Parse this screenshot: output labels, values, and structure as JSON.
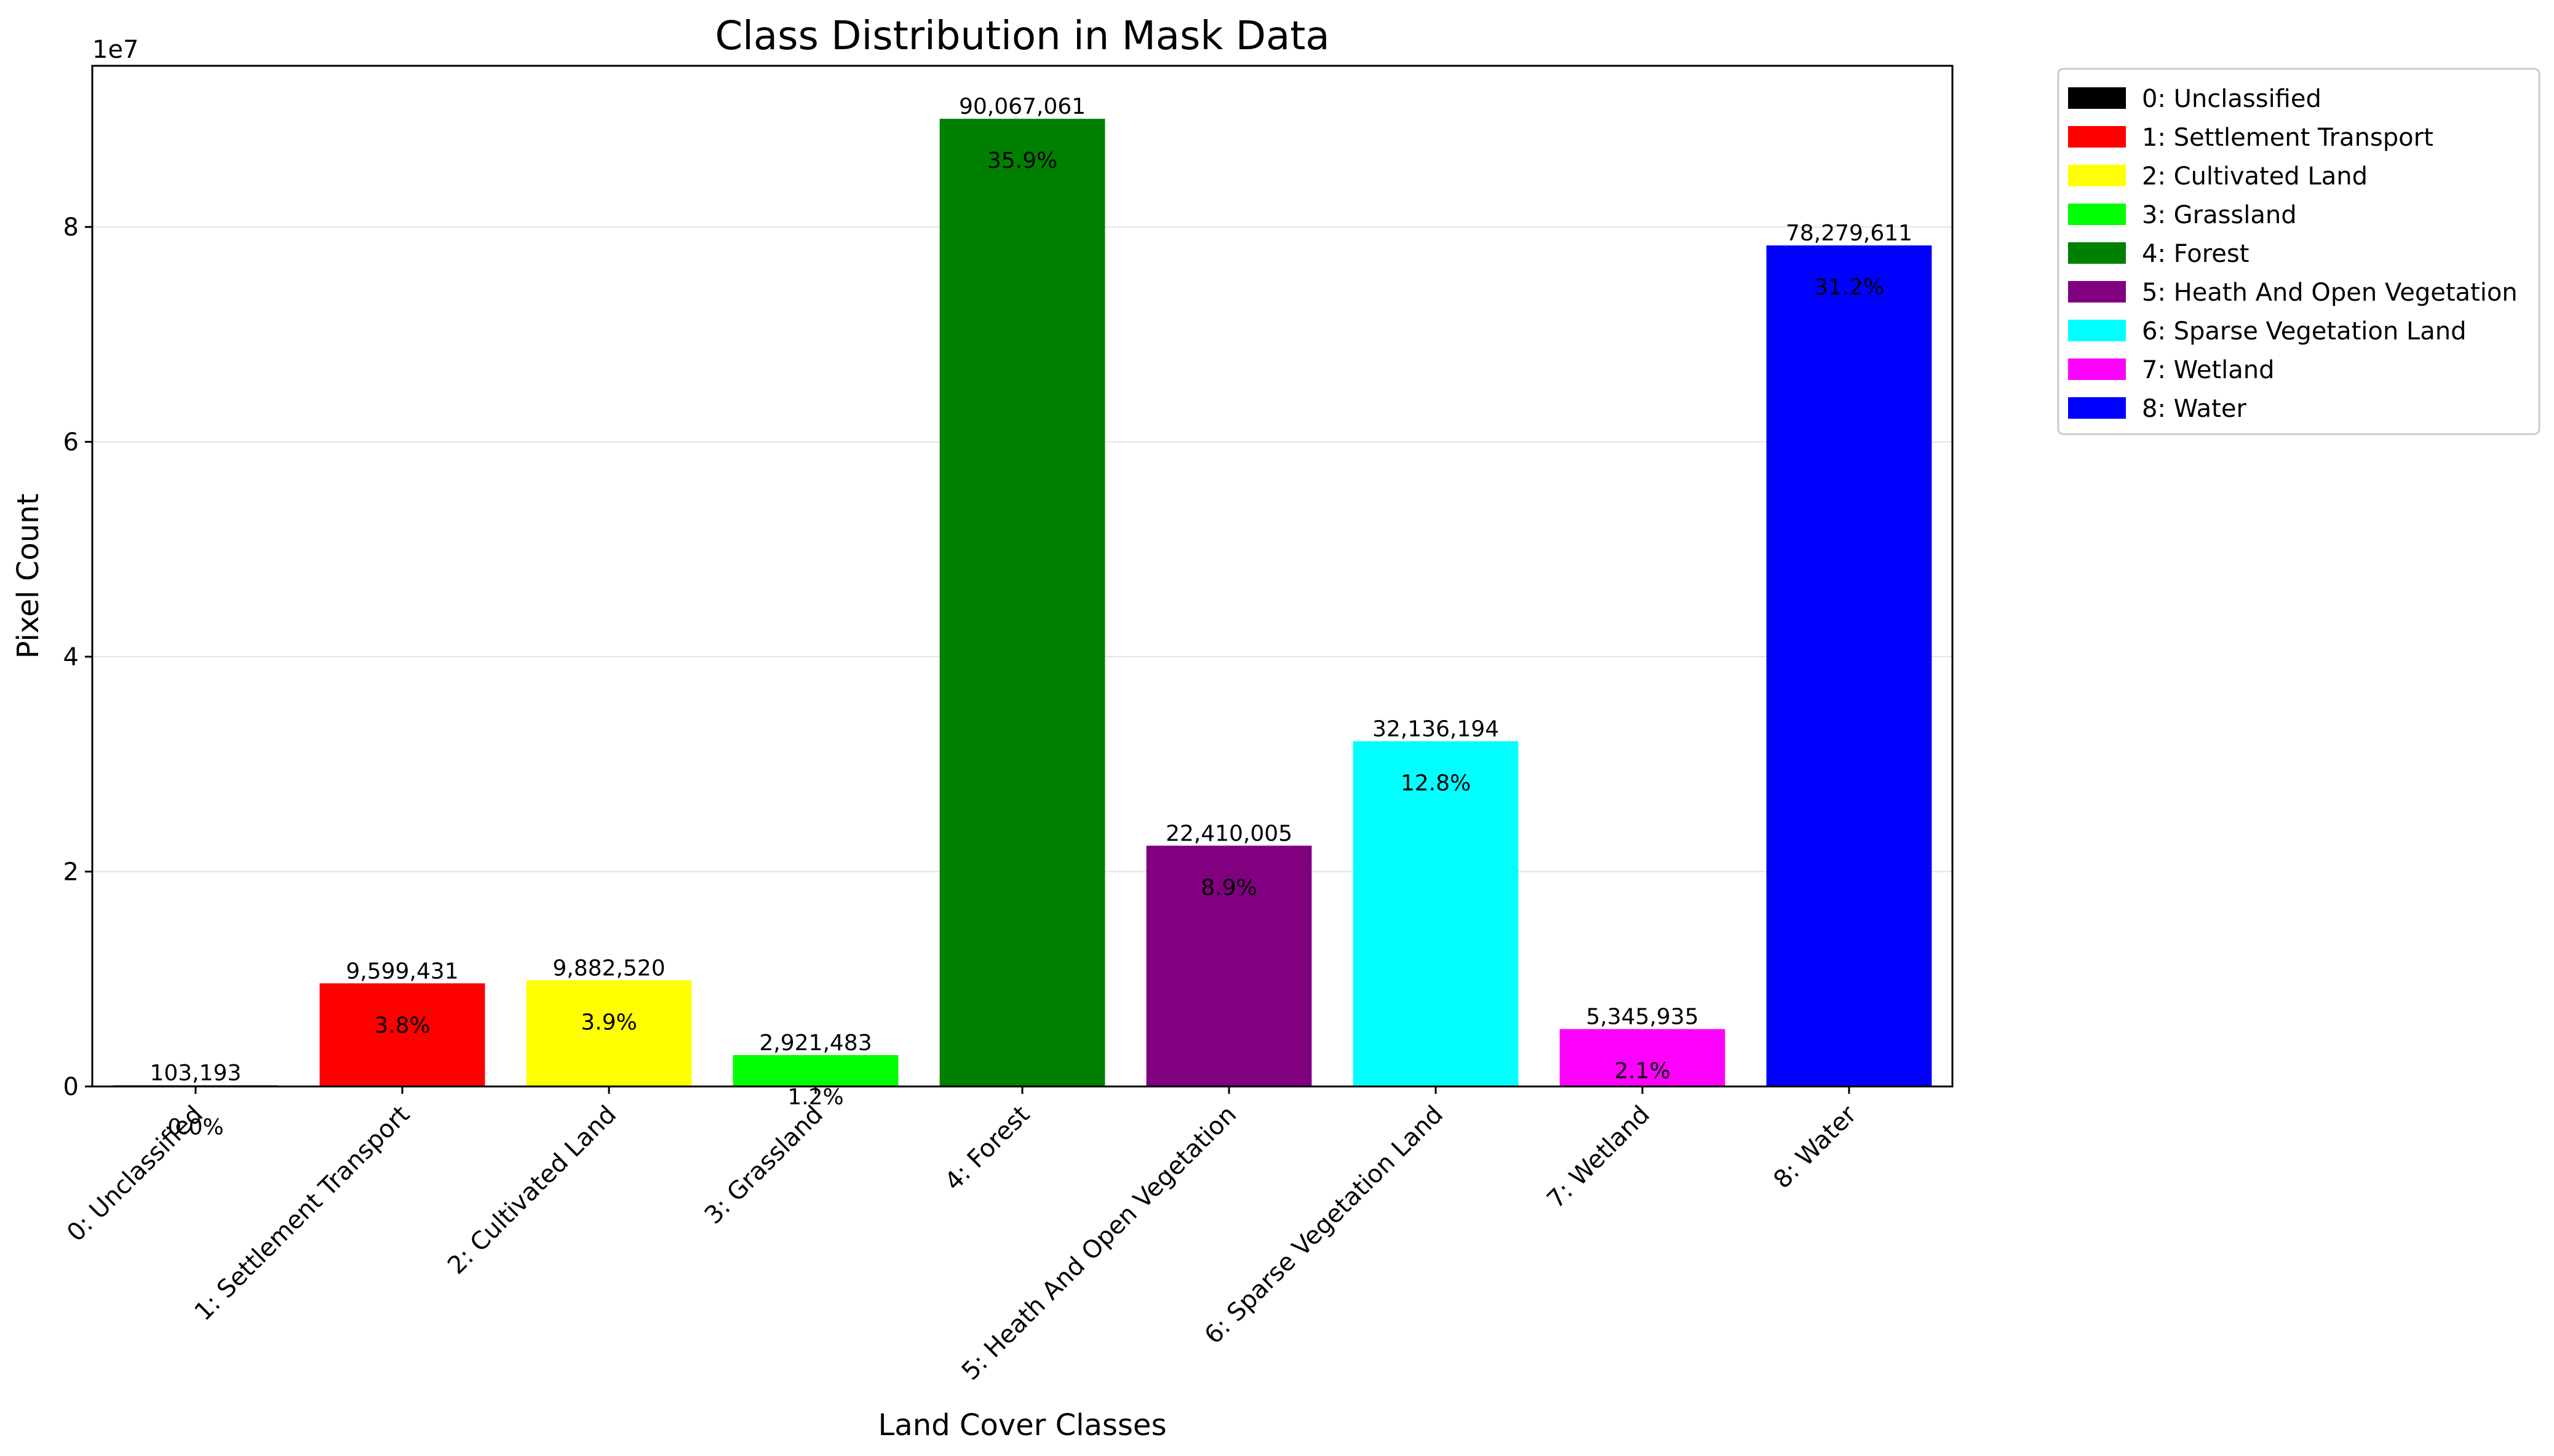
{
  "chart_data": {
    "type": "bar",
    "title": "Class Distribution in Mask Data",
    "xlabel": "Land Cover Classes",
    "ylabel": "Pixel Count",
    "y_offset_text": "1e7",
    "ylim": [
      0,
      95000000
    ],
    "yticks": [
      0,
      20000000,
      40000000,
      60000000,
      80000000
    ],
    "ytick_labels": [
      "0",
      "2",
      "4",
      "6",
      "8"
    ],
    "grid": "y",
    "legend_position": "outside-right",
    "categories": [
      "0: Unclassified",
      "1: Settlement Transport",
      "2: Cultivated Land",
      "3: Grassland",
      "4: Forest",
      "5: Heath And Open Vegetation",
      "6: Sparse Vegetation Land",
      "7: Wetland",
      "8: Water"
    ],
    "values": [
      103193,
      9599431,
      9882520,
      2921483,
      90067061,
      22410005,
      32136194,
      5345935,
      78279611
    ],
    "value_labels": [
      "103,193",
      "9,599,431",
      "9,882,520",
      "2,921,483",
      "90,067,061",
      "22,410,005",
      "32,136,194",
      "5,345,935",
      "78,279,611"
    ],
    "percent_labels": [
      "0.0%",
      "3.8%",
      "3.9%",
      "1.2%",
      "35.9%",
      "8.9%",
      "12.8%",
      "2.1%",
      "31.2%"
    ],
    "colors": [
      "#000000",
      "#ff0000",
      "#ffff00",
      "#00ff00",
      "#008000",
      "#800080",
      "#00ffff",
      "#ff00ff",
      "#0000ff"
    ]
  }
}
